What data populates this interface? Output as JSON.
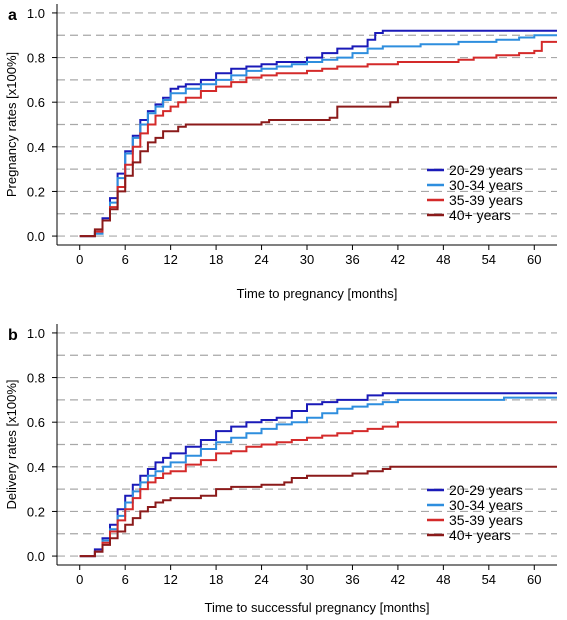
{
  "chart_data": [
    {
      "type": "line",
      "panel_label": "a",
      "xlabel": "Time to pregnancy [months]",
      "ylabel": "Pregnancy rates [x100%]",
      "xlim": [
        -3,
        63
      ],
      "ylim": [
        -0.04,
        1.04
      ],
      "xticks": [
        0,
        6,
        12,
        18,
        24,
        30,
        36,
        42,
        48,
        54,
        60
      ],
      "yticks": [
        0.0,
        0.2,
        0.4,
        0.6,
        0.8,
        1.0
      ],
      "ytick_labels": [
        "0.0",
        "0.2",
        "0.4",
        "0.6",
        "0.8",
        "1.0"
      ],
      "grid": "horizontal dashed every 0.1",
      "legend_position": "bottom-right",
      "series": [
        {
          "name": "20-29 years",
          "color": "#1a1ab8",
          "x": [
            0,
            1,
            2,
            3,
            4,
            5,
            6,
            7,
            8,
            9,
            10,
            11,
            12,
            13,
            14,
            16,
            18,
            20,
            22,
            24,
            26,
            28,
            30,
            32,
            34,
            36,
            38,
            39,
            40,
            45,
            50,
            55,
            60,
            63
          ],
          "y": [
            0,
            0,
            0.02,
            0.08,
            0.17,
            0.28,
            0.38,
            0.45,
            0.52,
            0.56,
            0.59,
            0.62,
            0.66,
            0.67,
            0.68,
            0.7,
            0.73,
            0.75,
            0.76,
            0.77,
            0.78,
            0.78,
            0.8,
            0.82,
            0.84,
            0.85,
            0.88,
            0.91,
            0.92,
            0.92,
            0.92,
            0.92,
            0.92,
            0.92
          ]
        },
        {
          "name": "30-34 years",
          "color": "#2e8ede",
          "x": [
            0,
            1,
            2,
            3,
            4,
            5,
            6,
            7,
            8,
            9,
            10,
            11,
            12,
            14,
            16,
            18,
            20,
            22,
            24,
            26,
            28,
            30,
            32,
            34,
            36,
            38,
            40,
            45,
            50,
            55,
            58,
            60,
            63
          ],
          "y": [
            0,
            0,
            0.01,
            0.07,
            0.15,
            0.26,
            0.37,
            0.44,
            0.5,
            0.55,
            0.58,
            0.61,
            0.64,
            0.66,
            0.68,
            0.7,
            0.72,
            0.74,
            0.75,
            0.76,
            0.77,
            0.78,
            0.79,
            0.8,
            0.82,
            0.84,
            0.85,
            0.86,
            0.87,
            0.88,
            0.89,
            0.9,
            0.9
          ]
        },
        {
          "name": "35-39 years",
          "color": "#d42a2a",
          "x": [
            0,
            1,
            2,
            3,
            4,
            5,
            6,
            7,
            8,
            9,
            10,
            11,
            12,
            13,
            14,
            16,
            18,
            20,
            22,
            24,
            26,
            28,
            30,
            32,
            34,
            36,
            38,
            40,
            42,
            45,
            50,
            52,
            55,
            58,
            60,
            61,
            63
          ],
          "y": [
            0,
            0,
            0.02,
            0.07,
            0.13,
            0.22,
            0.32,
            0.4,
            0.46,
            0.5,
            0.54,
            0.56,
            0.58,
            0.6,
            0.62,
            0.65,
            0.67,
            0.69,
            0.71,
            0.72,
            0.73,
            0.73,
            0.74,
            0.75,
            0.76,
            0.76,
            0.77,
            0.77,
            0.78,
            0.78,
            0.79,
            0.8,
            0.81,
            0.82,
            0.83,
            0.87,
            0.87
          ]
        },
        {
          "name": "40+ years",
          "color": "#8b1a1a",
          "x": [
            0,
            1,
            2,
            3,
            4,
            5,
            6,
            7,
            8,
            9,
            10,
            11,
            12,
            13,
            14,
            15,
            18,
            24,
            25,
            30,
            33,
            34,
            40,
            41,
            42,
            63
          ],
          "y": [
            0,
            0,
            0.03,
            0.07,
            0.12,
            0.2,
            0.27,
            0.33,
            0.38,
            0.42,
            0.44,
            0.47,
            0.47,
            0.49,
            0.5,
            0.5,
            0.5,
            0.51,
            0.52,
            0.52,
            0.53,
            0.58,
            0.58,
            0.6,
            0.62,
            0.62
          ]
        }
      ]
    },
    {
      "type": "line",
      "panel_label": "b",
      "xlabel": "Time to successful pregnancy [months]",
      "ylabel": "Delivery rates [x100%]",
      "xlim": [
        -3,
        63
      ],
      "ylim": [
        -0.04,
        1.04
      ],
      "xticks": [
        0,
        6,
        12,
        18,
        24,
        30,
        36,
        42,
        48,
        54,
        60
      ],
      "yticks": [
        0.0,
        0.2,
        0.4,
        0.6,
        0.8,
        1.0
      ],
      "ytick_labels": [
        "0.0",
        "0.2",
        "0.4",
        "0.6",
        "0.8",
        "1.0"
      ],
      "grid": "horizontal dashed every 0.1",
      "legend_position": "bottom-right",
      "series": [
        {
          "name": "20-29 years",
          "color": "#1a1ab8",
          "x": [
            0,
            1,
            2,
            3,
            4,
            5,
            6,
            7,
            8,
            9,
            10,
            11,
            12,
            14,
            16,
            18,
            20,
            22,
            24,
            26,
            28,
            30,
            32,
            34,
            36,
            38,
            40,
            45,
            50,
            55,
            60,
            63
          ],
          "y": [
            0,
            0,
            0.03,
            0.08,
            0.14,
            0.21,
            0.27,
            0.32,
            0.36,
            0.39,
            0.42,
            0.44,
            0.46,
            0.49,
            0.52,
            0.56,
            0.58,
            0.6,
            0.61,
            0.62,
            0.65,
            0.68,
            0.69,
            0.7,
            0.7,
            0.72,
            0.73,
            0.73,
            0.73,
            0.73,
            0.73,
            0.73
          ]
        },
        {
          "name": "30-34 years",
          "color": "#2e8ede",
          "x": [
            0,
            1,
            2,
            3,
            4,
            5,
            6,
            7,
            8,
            9,
            10,
            11,
            12,
            14,
            16,
            18,
            20,
            22,
            24,
            26,
            28,
            30,
            32,
            34,
            36,
            38,
            40,
            42,
            45,
            50,
            54,
            56,
            60,
            63
          ],
          "y": [
            0,
            0,
            0.02,
            0.07,
            0.12,
            0.18,
            0.24,
            0.29,
            0.33,
            0.36,
            0.38,
            0.4,
            0.42,
            0.45,
            0.48,
            0.51,
            0.53,
            0.55,
            0.57,
            0.59,
            0.6,
            0.62,
            0.64,
            0.66,
            0.67,
            0.68,
            0.69,
            0.7,
            0.7,
            0.7,
            0.7,
            0.71,
            0.71,
            0.71
          ]
        },
        {
          "name": "35-39 years",
          "color": "#d42a2a",
          "x": [
            0,
            1,
            2,
            3,
            4,
            5,
            6,
            7,
            8,
            9,
            10,
            11,
            12,
            14,
            16,
            18,
            20,
            22,
            24,
            26,
            28,
            30,
            32,
            34,
            36,
            38,
            40,
            42,
            45,
            50,
            55,
            60,
            63
          ],
          "y": [
            0,
            0,
            0.02,
            0.06,
            0.11,
            0.16,
            0.21,
            0.26,
            0.3,
            0.33,
            0.35,
            0.37,
            0.38,
            0.41,
            0.43,
            0.46,
            0.47,
            0.49,
            0.5,
            0.51,
            0.52,
            0.53,
            0.54,
            0.55,
            0.56,
            0.57,
            0.58,
            0.6,
            0.6,
            0.6,
            0.6,
            0.6,
            0.6
          ]
        },
        {
          "name": "40+ years",
          "color": "#8b1a1a",
          "x": [
            0,
            1,
            2,
            3,
            4,
            5,
            6,
            7,
            8,
            9,
            10,
            11,
            12,
            14,
            16,
            18,
            20,
            24,
            27,
            28,
            30,
            34,
            36,
            38,
            40,
            41,
            42,
            45,
            50,
            55,
            60,
            63
          ],
          "y": [
            0,
            0,
            0.02,
            0.05,
            0.08,
            0.11,
            0.14,
            0.17,
            0.2,
            0.22,
            0.24,
            0.25,
            0.26,
            0.26,
            0.27,
            0.3,
            0.31,
            0.32,
            0.33,
            0.35,
            0.36,
            0.36,
            0.37,
            0.38,
            0.39,
            0.4,
            0.4,
            0.4,
            0.4,
            0.4,
            0.4,
            0.4
          ]
        }
      ]
    }
  ]
}
